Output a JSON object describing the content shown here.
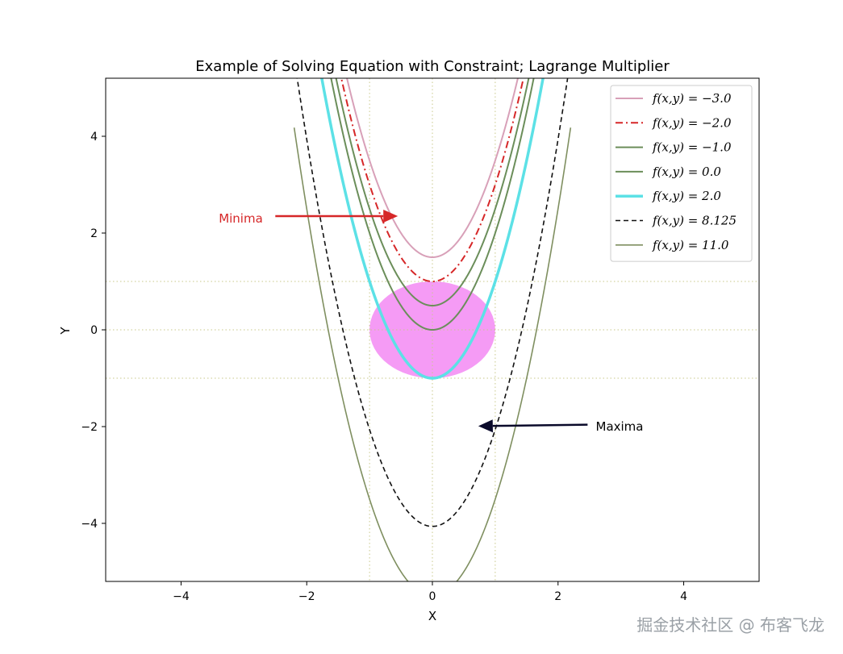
{
  "chart_data": {
    "type": "line",
    "title": "Example of Solving Equation with Constraint; Lagrange Multiplier",
    "xlabel": "X",
    "ylabel": "Y",
    "xlim": [
      -5.2,
      5.2
    ],
    "ylim": [
      -5.2,
      5.2
    ],
    "xticks": [
      -4,
      -2,
      0,
      2,
      4
    ],
    "yticks": [
      -4,
      -2,
      0,
      2,
      4
    ],
    "x_tick_labels": [
      "−4",
      "−2",
      "0",
      "2",
      "4"
    ],
    "y_tick_labels": [
      "−4",
      "−2",
      "0",
      "2",
      "4"
    ],
    "legend_placement": "top-right",
    "curve_equation": "y = 2x^2 - f(x,y)/2",
    "series": [
      {
        "name": "f(x,y) = −3.0",
        "f": -3.0,
        "color": "#d8a0b8",
        "style": "solid",
        "width": 2
      },
      {
        "name": "f(x,y) = −2.0",
        "f": -2.0,
        "color": "#d62728",
        "style": "dashdot",
        "width": 2
      },
      {
        "name": "f(x,y) = −1.0",
        "f": -1.0,
        "color": "#6b8e5a",
        "style": "solid",
        "width": 2
      },
      {
        "name": "f(x,y) = 0.0",
        "f": 0.0,
        "color": "#6b8e5a",
        "style": "solid",
        "width": 2
      },
      {
        "name": "f(x,y) = 2.0",
        "f": 2.0,
        "color": "#5ce1e6",
        "style": "solid",
        "width": 3.5
      },
      {
        "name": "f(x,y) = 8.125",
        "f": 8.125,
        "color": "#111111",
        "style": "dashed",
        "width": 1.6
      },
      {
        "name": "f(x,y) = 11.0",
        "f": 11.0,
        "color": "#7f8f60",
        "style": "solid",
        "width": 1.6
      }
    ],
    "constraint_region": {
      "type": "ellipse",
      "center": [
        0,
        0
      ],
      "rx": 1.0,
      "ry": 1.0,
      "color": "#f59bf5"
    },
    "reference_lines": {
      "vertical": [
        -1,
        0,
        1
      ],
      "horizontal": [
        -1,
        0,
        1
      ],
      "color": "#c8c88a",
      "style": "dotted"
    },
    "annotations": [
      {
        "text": "Minima",
        "text_xy": [
          -3.4,
          2.3
        ],
        "arrow_from": [
          -2.5,
          2.35
        ],
        "arrow_to": [
          -0.55,
          2.35
        ],
        "color": "#d62728",
        "text_color": "#d62728"
      },
      {
        "text": "Maxima",
        "text_xy": [
          2.6,
          -2.0
        ],
        "arrow_from": [
          2.47,
          -1.96
        ],
        "arrow_to": [
          0.73,
          -1.99
        ],
        "color": "#0a0a2a",
        "text_color": "#000000"
      }
    ]
  },
  "watermark": "掘金技术社区 @ 布客飞龙"
}
